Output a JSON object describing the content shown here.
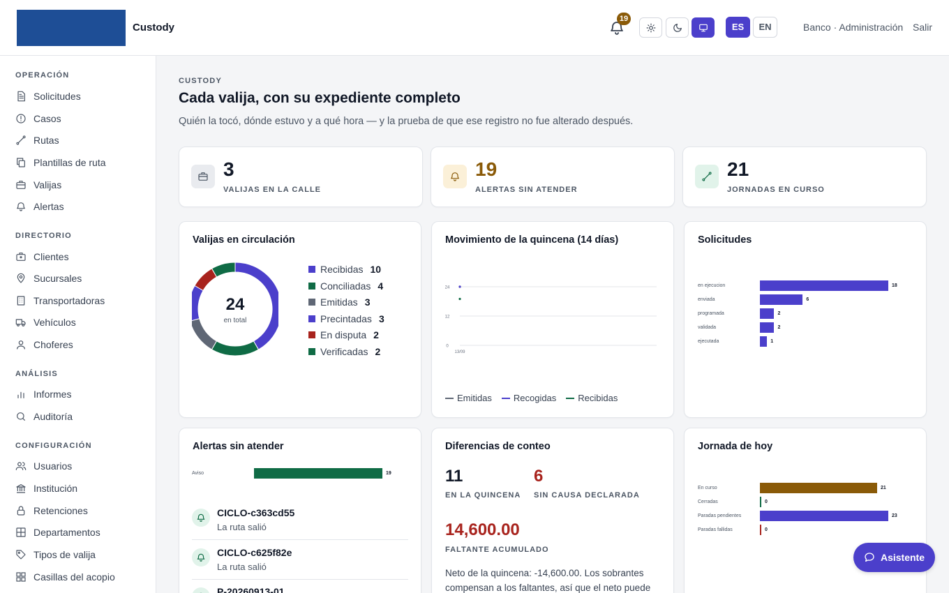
{
  "header": {
    "app_name": "Custody",
    "notifications_count": "19",
    "lang_es": "ES",
    "lang_en": "EN",
    "user": "Banco · Administración",
    "logout": "Salir"
  },
  "sidebar": {
    "sections": [
      {
        "title": "OPERACIÓN",
        "items": [
          "Solicitudes",
          "Casos",
          "Rutas",
          "Plantillas de ruta",
          "Valijas",
          "Alertas"
        ]
      },
      {
        "title": "DIRECTORIO",
        "items": [
          "Clientes",
          "Sucursales",
          "Transportadoras",
          "Vehículos",
          "Choferes"
        ]
      },
      {
        "title": "ANÁLISIS",
        "items": [
          "Informes",
          "Auditoría"
        ]
      },
      {
        "title": "CONFIGURACIÓN",
        "items": [
          "Usuarios",
          "Institución",
          "Retenciones",
          "Departamentos",
          "Tipos de valija",
          "Casillas del acopio"
        ]
      }
    ]
  },
  "page": {
    "eyebrow": "CUSTODY",
    "title": "Cada valija, con su expediente completo",
    "subtitle": "Quién la tocó, dónde estuvo y a qué hora — y la prueba de que ese registro no fue alterado después."
  },
  "stats": [
    {
      "value": "3",
      "label": "VALIJAS EN LA CALLE",
      "color": "#111827"
    },
    {
      "value": "19",
      "label": "ALERTAS SIN ATENDER",
      "color": "#8a5a08"
    },
    {
      "value": "21",
      "label": "JORNADAS EN CURSO",
      "color": "#111827"
    }
  ],
  "cards": {
    "circulation_title": "Valijas en circulación",
    "movement_title": "Movimiento de la quincena (14 días)",
    "requests_title": "Solicitudes",
    "alerts_title": "Alertas sin atender",
    "diffs_title": "Diferencias de conteo",
    "today_title": "Jornada de hoy"
  },
  "chart_data": [
    {
      "type": "pie",
      "title": "Valijas en circulación",
      "center_value": "24",
      "center_label": "en total",
      "categories": [
        "Recibidas",
        "Conciliadas",
        "Emitidas",
        "Precintadas",
        "En disputa",
        "Verificadas"
      ],
      "values": [
        10,
        4,
        3,
        3,
        2,
        2
      ],
      "colors": [
        "#4b3fcb",
        "#0f6b45",
        "#5f6775",
        "#4b3fcb",
        "#a8231d",
        "#0f6b45"
      ],
      "legend_placement": "right"
    },
    {
      "type": "line",
      "title": "Movimiento de la quincena (14 días)",
      "x": [
        "13/09"
      ],
      "series": [
        {
          "name": "Emitidas",
          "values": [
            24
          ],
          "color": "#5f6775"
        },
        {
          "name": "Recogidas",
          "values": [
            24
          ],
          "color": "#4b3fcb"
        },
        {
          "name": "Recibidas",
          "values": [
            19
          ],
          "color": "#0f6b45"
        }
      ],
      "yticks": [
        "24",
        "12",
        "0"
      ],
      "ylim": [
        0,
        24
      ],
      "grid": true,
      "legend_placement": "bottom"
    },
    {
      "type": "bar",
      "title": "Solicitudes",
      "orientation": "horizontal",
      "categories": [
        "en ejecucion",
        "enviada",
        "programada",
        "validada",
        "ejecutada"
      ],
      "values": [
        18,
        6,
        2,
        2,
        1
      ],
      "colors": [
        "#4b3fcb",
        "#4b3fcb",
        "#4b3fcb",
        "#4b3fcb",
        "#4b3fcb"
      ],
      "xlim": [
        0,
        18
      ]
    },
    {
      "type": "bar",
      "title": "Alertas sin atender",
      "orientation": "horizontal",
      "categories": [
        "Aviso"
      ],
      "values": [
        19
      ],
      "colors": [
        "#0f6b45"
      ],
      "xlim": [
        0,
        19
      ]
    },
    {
      "type": "bar",
      "title": "Jornada de hoy",
      "orientation": "horizontal",
      "categories": [
        "En curso",
        "Cerradas",
        "Paradas pendientes",
        "Paradas fallidas"
      ],
      "values": [
        21,
        0,
        23,
        0
      ],
      "colors": [
        "#8a5a08",
        "#0f6b45",
        "#4b3fcb",
        "#a8231d"
      ],
      "xlim": [
        0,
        23
      ]
    }
  ],
  "alerts": [
    {
      "title": "CICLO-c363cd55",
      "subtitle": "La ruta salió"
    },
    {
      "title": "CICLO-c625f82e",
      "subtitle": "La ruta salió"
    },
    {
      "title": "P-20260913-01",
      "subtitle": ""
    }
  ],
  "diffs": {
    "count_value": "11",
    "count_label": "EN LA QUINCENA",
    "nocause_value": "6",
    "nocause_label": "SIN CAUSA DECLARADA",
    "amount_value": "14,600.00",
    "amount_label": "FALTANTE ACUMULADO",
    "note": "Neto de la quincena: -14,600.00. Los sobrantes compensan a los faltantes, así que el neto puede"
  },
  "assistant_label": "Asistente"
}
